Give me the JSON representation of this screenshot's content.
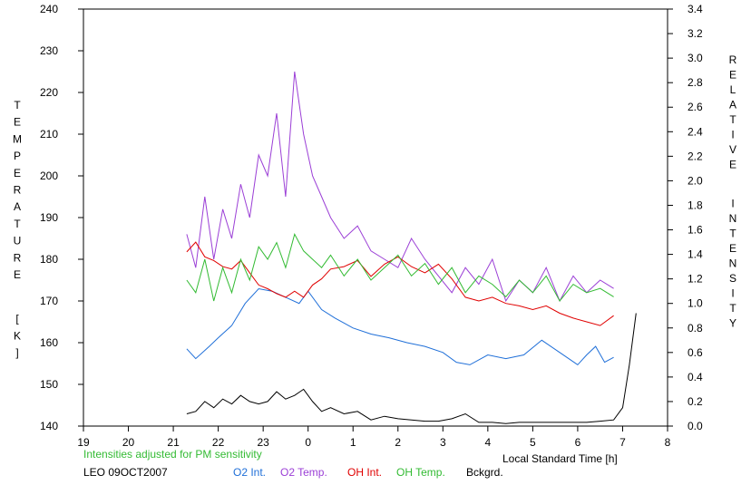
{
  "chart_data": {
    "type": "line",
    "xlabel": "Local Standard Time [h]",
    "ylabel_left": "TEMPERATURE [K]",
    "ylabel_right": "RELATIVE INTENSITY",
    "x_ticks": [
      "19",
      "20",
      "21",
      "22",
      "23",
      "0",
      "1",
      "2",
      "3",
      "4",
      "5",
      "6",
      "7",
      "8"
    ],
    "xlim": [
      19,
      32
    ],
    "y_left_lim": [
      140,
      240
    ],
    "y_left_ticks": [
      140,
      150,
      160,
      170,
      180,
      190,
      200,
      210,
      220,
      230,
      240
    ],
    "y_right_lim": [
      0,
      3.4
    ],
    "y_right_ticks": [
      "0.0",
      "0.2",
      "0.4",
      "0.6",
      "0.8",
      "1.0",
      "1.2",
      "1.4",
      "1.6",
      "1.8",
      "2.0",
      "2.2",
      "2.4",
      "2.6",
      "2.8",
      "3.0",
      "3.2",
      "3.4"
    ],
    "grid": false,
    "legend": "bottom",
    "series": [
      {
        "name": "O2 Int.",
        "axis": "right",
        "color": "#1f6fd8",
        "x": [
          21.3,
          21.5,
          21.8,
          22.0,
          22.3,
          22.6,
          22.9,
          23.2,
          23.5,
          23.8,
          24.0,
          24.3,
          24.6,
          25.0,
          25.4,
          25.8,
          26.2,
          26.6,
          27.0,
          27.3,
          27.6,
          28.0,
          28.4,
          28.8,
          29.2,
          29.6,
          30.0,
          30.2,
          30.4,
          30.6,
          30.8
        ],
        "y": [
          0.63,
          0.55,
          0.65,
          0.72,
          0.82,
          1.0,
          1.12,
          1.1,
          1.05,
          1.0,
          1.1,
          0.95,
          0.88,
          0.8,
          0.75,
          0.72,
          0.68,
          0.65,
          0.6,
          0.52,
          0.5,
          0.58,
          0.55,
          0.58,
          0.7,
          0.6,
          0.5,
          0.58,
          0.65,
          0.52,
          0.56
        ]
      },
      {
        "name": "O2 Temp.",
        "axis": "left",
        "color": "#9b3fd6",
        "x": [
          21.3,
          21.5,
          21.7,
          21.9,
          22.1,
          22.3,
          22.5,
          22.7,
          22.9,
          23.1,
          23.3,
          23.5,
          23.7,
          23.9,
          24.1,
          24.3,
          24.5,
          24.8,
          25.1,
          25.4,
          25.7,
          26.0,
          26.3,
          26.6,
          26.9,
          27.2,
          27.5,
          27.8,
          28.1,
          28.4,
          28.7,
          29.0,
          29.3,
          29.6,
          29.9,
          30.2,
          30.5,
          30.8
        ],
        "y": [
          186,
          178,
          195,
          180,
          192,
          185,
          198,
          190,
          205,
          200,
          215,
          195,
          225,
          210,
          200,
          195,
          190,
          185,
          188,
          182,
          180,
          178,
          185,
          180,
          176,
          172,
          178,
          174,
          180,
          170,
          175,
          172,
          178,
          170,
          176,
          172,
          175,
          173
        ]
      },
      {
        "name": "OH Int.",
        "axis": "right",
        "color": "#e00000",
        "x": [
          21.3,
          21.5,
          21.7,
          21.9,
          22.1,
          22.3,
          22.5,
          22.7,
          22.9,
          23.1,
          23.3,
          23.5,
          23.7,
          23.9,
          24.1,
          24.3,
          24.5,
          24.8,
          25.1,
          25.4,
          25.7,
          26.0,
          26.3,
          26.6,
          26.9,
          27.2,
          27.5,
          27.8,
          28.1,
          28.4,
          28.7,
          29.0,
          29.3,
          29.6,
          29.9,
          30.2,
          30.5,
          30.8
        ],
        "y": [
          1.42,
          1.5,
          1.38,
          1.35,
          1.3,
          1.28,
          1.35,
          1.25,
          1.15,
          1.12,
          1.08,
          1.05,
          1.1,
          1.05,
          1.15,
          1.2,
          1.28,
          1.3,
          1.35,
          1.22,
          1.32,
          1.38,
          1.3,
          1.25,
          1.32,
          1.2,
          1.05,
          1.02,
          1.05,
          1.0,
          0.98,
          0.95,
          0.98,
          0.92,
          0.88,
          0.85,
          0.82,
          0.9
        ]
      },
      {
        "name": "OH Temp.",
        "axis": "left",
        "color": "#33bb33",
        "x": [
          21.3,
          21.5,
          21.7,
          21.9,
          22.1,
          22.3,
          22.5,
          22.7,
          22.9,
          23.1,
          23.3,
          23.5,
          23.7,
          23.9,
          24.1,
          24.3,
          24.5,
          24.8,
          25.1,
          25.4,
          25.7,
          26.0,
          26.3,
          26.6,
          26.9,
          27.2,
          27.5,
          27.8,
          28.1,
          28.4,
          28.7,
          29.0,
          29.3,
          29.6,
          29.9,
          30.2,
          30.5,
          30.8
        ],
        "y": [
          175,
          172,
          180,
          170,
          178,
          172,
          180,
          175,
          183,
          180,
          184,
          178,
          186,
          182,
          180,
          178,
          181,
          176,
          180,
          175,
          178,
          181,
          176,
          179,
          174,
          178,
          172,
          176,
          174,
          171,
          175,
          172,
          176,
          170,
          174,
          172,
          173,
          171
        ]
      },
      {
        "name": "Bckgrd.",
        "axis": "right",
        "color": "#000000",
        "x": [
          21.3,
          21.5,
          21.7,
          21.9,
          22.1,
          22.3,
          22.5,
          22.7,
          22.9,
          23.1,
          23.3,
          23.5,
          23.7,
          23.9,
          24.1,
          24.3,
          24.5,
          24.8,
          25.1,
          25.4,
          25.7,
          26.0,
          26.3,
          26.6,
          26.9,
          27.2,
          27.5,
          27.8,
          28.1,
          28.4,
          28.7,
          29.0,
          29.3,
          29.6,
          29.9,
          30.2,
          30.5,
          30.8,
          31.0,
          31.15,
          31.3
        ],
        "y": [
          0.1,
          0.12,
          0.2,
          0.15,
          0.22,
          0.18,
          0.25,
          0.2,
          0.18,
          0.2,
          0.28,
          0.22,
          0.25,
          0.3,
          0.2,
          0.12,
          0.15,
          0.1,
          0.12,
          0.05,
          0.08,
          0.06,
          0.05,
          0.04,
          0.04,
          0.06,
          0.1,
          0.03,
          0.03,
          0.02,
          0.03,
          0.03,
          0.03,
          0.03,
          0.03,
          0.03,
          0.04,
          0.05,
          0.15,
          0.5,
          0.92
        ]
      }
    ],
    "annotations": {
      "sensitivity_note": "Intensities adjusted for PM sensitivity",
      "site_date": "LEO 09OCT2007"
    }
  }
}
